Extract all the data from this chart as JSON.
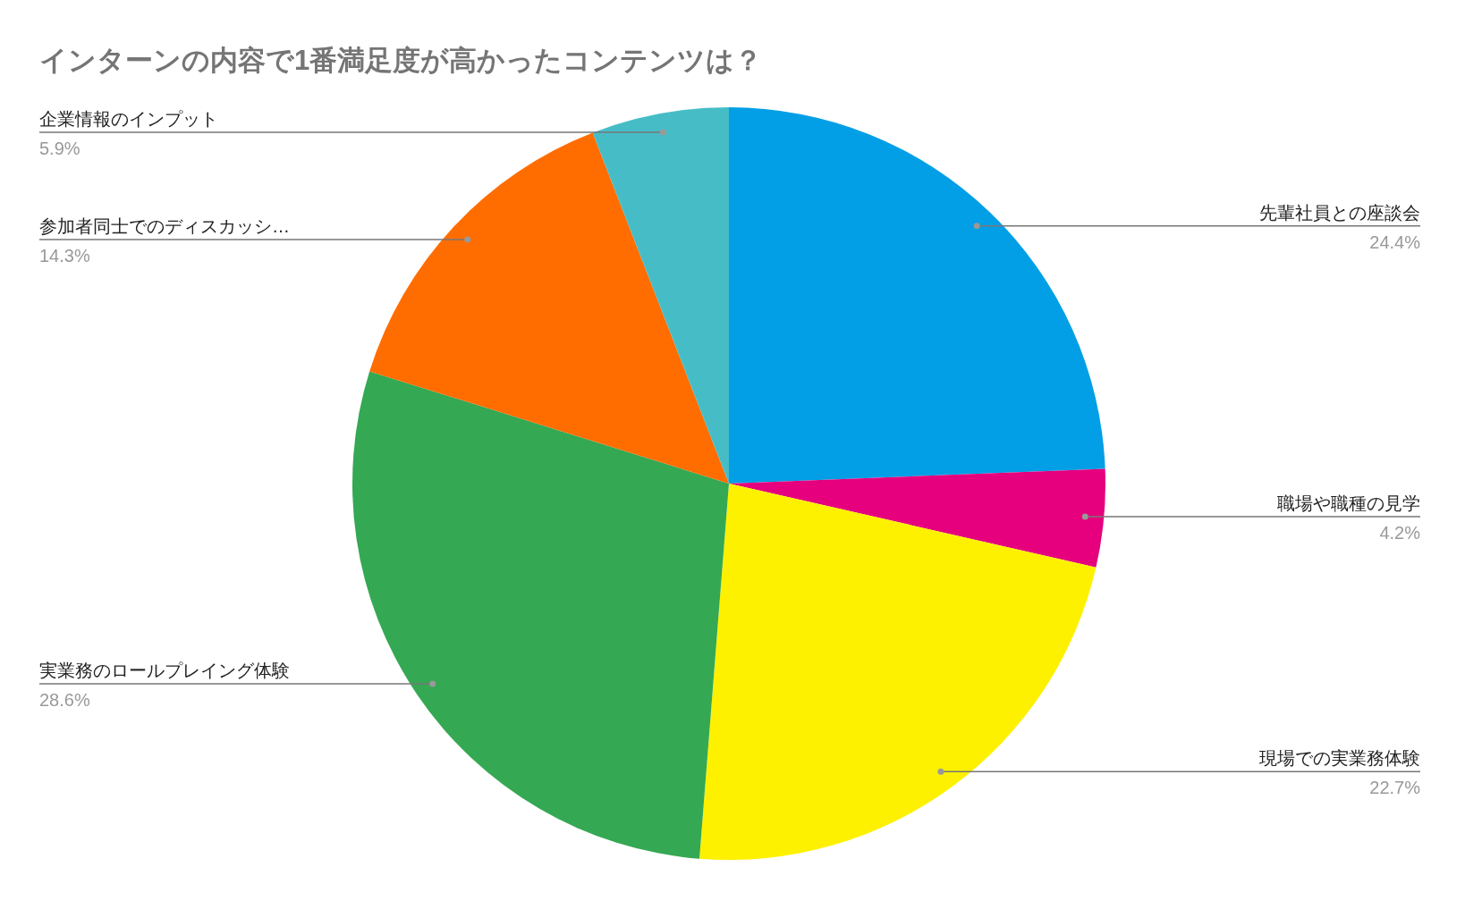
{
  "chart_data": {
    "type": "pie",
    "title": "インターンの内容で1番満足度が高かったコンテンツは？",
    "categories": [
      "先輩社員との座談会",
      "職場や職種の見学",
      "現場での実業務体験",
      "実業務のロールプレイング体験",
      "参加者同士でのディスカッシ…",
      "企業情報のインプット"
    ],
    "values": [
      24.4,
      4.2,
      22.7,
      28.6,
      14.3,
      5.9
    ],
    "colors": [
      "#039fe6",
      "#e6007e",
      "#fdf100",
      "#34a853",
      "#ff6d01",
      "#46bdc6"
    ],
    "value_labels": [
      "24.4%",
      "4.2%",
      "22.7%",
      "28.6%",
      "14.3%",
      "5.9%"
    ]
  }
}
